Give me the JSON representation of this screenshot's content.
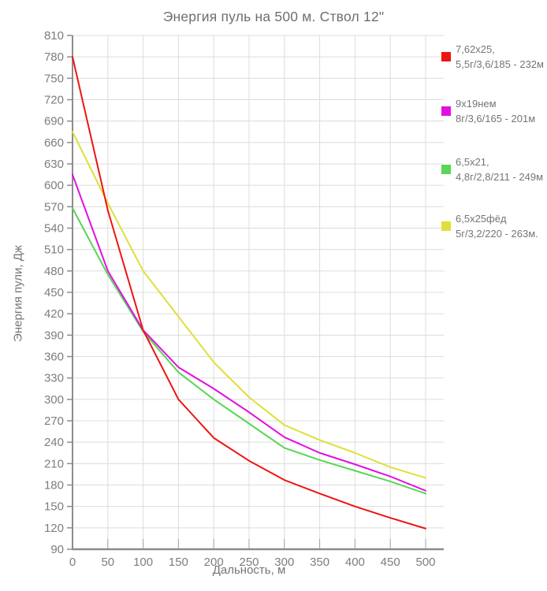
{
  "title": "Энергия пуль на 500 м. Ствол 12\"",
  "legend": {
    "items": [
      {
        "line1": "7,62x25,",
        "line2": "5,5г/3,6/185 - 232м",
        "color": "#ee1511"
      },
      {
        "line1": "9x19нем",
        "line2": "8г/3,6/165 - 201м",
        "color": "#e010e0"
      },
      {
        "line1": "6,5x21,",
        "line2": "4,8г/2,8/211 - 249м",
        "color": "#57d657"
      },
      {
        "line1": "6,5x25фёд",
        "line2": "5г/3,2/220 - 263м.",
        "color": "#dfdf3a"
      }
    ]
  },
  "chart_data": {
    "type": "line",
    "title": "Энергия пуль на 500 м. Ствол 12\"",
    "xlabel": "Дальность, м",
    "ylabel": "Энергия пули, Дж",
    "xlim": [
      0,
      500
    ],
    "ylim": [
      90,
      810
    ],
    "x_tick_step": 50,
    "y_tick_step": 30,
    "grid": true,
    "legend_position": "right",
    "x": [
      0,
      50,
      100,
      150,
      200,
      250,
      300,
      350,
      400,
      450,
      500
    ],
    "series": [
      {
        "name": "6,5x25фёд 5г/3,2/220 - 263м.",
        "color": "#dfdf3a",
        "values": [
          675,
          575,
          480,
          416,
          352,
          303,
          264,
          243,
          225,
          205,
          190
        ]
      },
      {
        "name": "6,5x21, 4,8г/2,8/211 - 249м",
        "color": "#57d657",
        "values": [
          568,
          475,
          395,
          338,
          300,
          266,
          232,
          215,
          200,
          185,
          168
        ]
      },
      {
        "name": "9x19нем 8г/3,6/165 - 201м",
        "color": "#e010e0",
        "values": [
          615,
          480,
          397,
          345,
          315,
          282,
          247,
          225,
          209,
          192,
          172
        ]
      },
      {
        "name": "7,62x25, 5,5г/3,6/185 - 232м",
        "color": "#ee1511",
        "values": [
          780,
          565,
          397,
          300,
          246,
          214,
          187,
          168,
          150,
          134,
          119
        ]
      }
    ],
    "colors": {
      "gridline": "#dcdcdc",
      "axis": "#8c8c8c",
      "tick_stub": "#a3a3a3",
      "text": "#757575"
    }
  }
}
